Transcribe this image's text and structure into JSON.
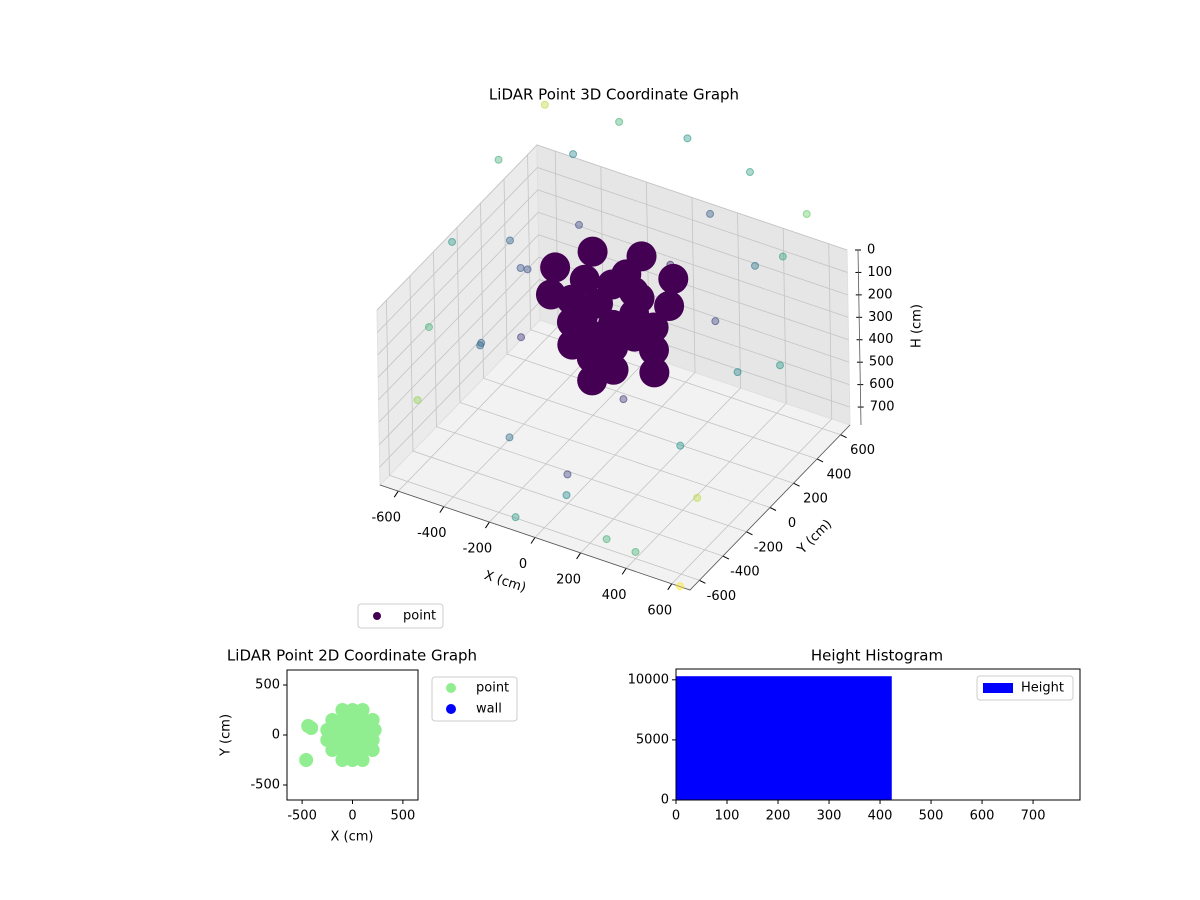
{
  "chart_data": [
    {
      "type": "scatter3d",
      "title": "LiDAR Point 3D Coordinate Graph",
      "x_label": "X (cm)",
      "y_label": "Y (cm)",
      "z_label": "H (cm)",
      "xlim": [
        -680,
        680
      ],
      "ylim": [
        -680,
        680
      ],
      "zlim": [
        780,
        0
      ],
      "xticks": [
        -600,
        -400,
        -200,
        0,
        200,
        400,
        600
      ],
      "yticks": [
        -600,
        -400,
        -200,
        0,
        200,
        400,
        600
      ],
      "zticks": [
        0,
        100,
        200,
        300,
        400,
        500,
        600,
        700
      ],
      "colormap": "viridis",
      "grid": true,
      "legend": "lower left",
      "series": [
        {
          "name": "point",
          "color": "#440154",
          "x": [
            -600,
            -300,
            0,
            300,
            600,
            650,
            -650,
            -400,
            200,
            500,
            -650,
            -500,
            -300,
            100,
            400,
            600,
            -600,
            -300,
            200,
            500,
            650,
            -200,
            100,
            300,
            -550,
            0,
            400,
            -100,
            620,
            550,
            250,
            177,
            0,
            -177,
            -250,
            -177,
            0,
            177,
            0,
            120,
            0,
            -120,
            0,
            180,
            0,
            -180,
            0,
            180,
            0,
            -180,
            0,
            180,
            0,
            -180,
            0,
            0,
            0,
            0,
            -450,
            -430,
            -450,
            -460
          ],
          "y": [
            600,
            650,
            650,
            600,
            500,
            200,
            300,
            450,
            450,
            250,
            -100,
            100,
            300,
            300,
            100,
            -100,
            -400,
            -200,
            -300,
            -400,
            -550,
            -500,
            -600,
            -650,
            -600,
            -400,
            -600,
            -650,
            -650,
            350,
            0,
            177,
            250,
            177,
            0,
            -177,
            -250,
            -177,
            0,
            0,
            120,
            0,
            -120,
            0,
            180,
            0,
            -180,
            0,
            180,
            0,
            -180,
            0,
            180,
            0,
            -180,
            0,
            0,
            0,
            90,
            110,
            -250,
            -240
          ],
          "values": [
            -250,
            -250,
            -280,
            -260,
            -230,
            -220,
            -150,
            -180,
            -120,
            -100,
            0,
            50,
            20,
            60,
            100,
            150,
            200,
            250,
            300,
            350,
            450,
            500,
            600,
            700,
            400,
            650,
            750,
            740,
            800,
            380,
            30,
            30,
            30,
            30,
            30,
            30,
            30,
            30,
            20,
            40,
            40,
            40,
            40,
            150,
            150,
            150,
            150,
            250,
            250,
            250,
            250,
            350,
            350,
            350,
            350,
            200,
            300,
            400,
            150,
            160,
            300,
            320
          ]
        }
      ]
    },
    {
      "type": "scatter",
      "title": "LiDAR Point 2D Coordinate Graph",
      "x_label": "X (cm)",
      "y_label": "Y (cm)",
      "xlim": [
        -650,
        650
      ],
      "ylim": [
        -650,
        650
      ],
      "xticks": [
        -500,
        0,
        500
      ],
      "yticks": [
        -500,
        0,
        500
      ],
      "legend": "outside right",
      "series": [
        {
          "name": "point",
          "color": "#90ee90",
          "x": [
            -100,
            0,
            100,
            -200,
            -100,
            0,
            100,
            200,
            -250,
            -150,
            -50,
            50,
            150,
            220,
            -250,
            -150,
            -50,
            50,
            150,
            200,
            -200,
            -100,
            0,
            100,
            200,
            -100,
            0,
            100,
            -440,
            -410,
            -460
          ],
          "values": [
            250,
            250,
            250,
            150,
            150,
            150,
            150,
            150,
            50,
            50,
            50,
            50,
            50,
            50,
            -50,
            -50,
            -50,
            -50,
            -50,
            -50,
            -150,
            -150,
            -150,
            -150,
            -150,
            -250,
            -250,
            -250,
            90,
            70,
            -250
          ]
        },
        {
          "name": "wall",
          "color": "#0000ff",
          "x": [],
          "values": []
        }
      ]
    },
    {
      "type": "histogram",
      "title": "Height Histogram",
      "xlim": [
        0,
        792
      ],
      "ylim": [
        0,
        10900
      ],
      "xticks": [
        0,
        100,
        200,
        300,
        400,
        500,
        600,
        700
      ],
      "yticks": [
        0,
        5000,
        10000
      ],
      "legend": "upper right",
      "series": [
        {
          "name": "Height",
          "color": "#0000ff",
          "bins": [
            0,
            423,
            792
          ],
          "values": [
            10300,
            40
          ]
        }
      ]
    }
  ]
}
